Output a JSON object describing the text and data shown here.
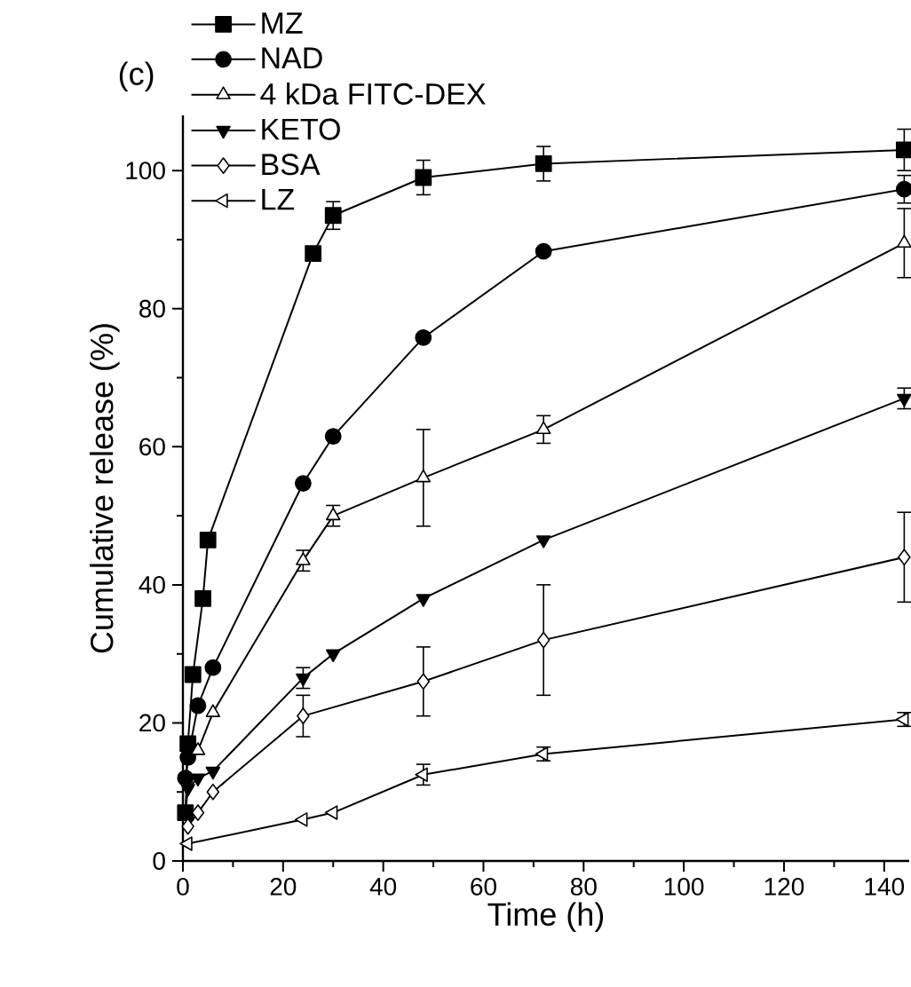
{
  "chart_data": {
    "type": "line",
    "xlabel": "Time (h)",
    "ylabel": "Cumulative release (%)",
    "annotations": [
      "(c)"
    ],
    "xlim": [
      0,
      145
    ],
    "ylim": [
      0,
      108
    ],
    "xticks": [
      0,
      20,
      40,
      60,
      80,
      100,
      120,
      140
    ],
    "yticks": [
      0,
      20,
      40,
      60,
      80,
      100
    ],
    "grid": false,
    "legend": "top left",
    "line_style": "solid",
    "series": [
      {
        "name": "MZ",
        "color": "#000000",
        "marker": "square",
        "x": [
          0.5,
          1,
          2,
          4,
          5,
          26,
          30,
          48,
          72,
          144
        ],
        "values": [
          7,
          17,
          27,
          38,
          46.5,
          88,
          93.5,
          99,
          101,
          103
        ],
        "errors": [
          null,
          null,
          null,
          null,
          null,
          null,
          2,
          2.5,
          2.5,
          3
        ]
      },
      {
        "name": "NAD",
        "color": "#000000",
        "marker": "circle",
        "x": [
          0.5,
          1,
          3,
          6,
          24,
          30,
          48,
          72,
          144
        ],
        "values": [
          12,
          15,
          22.5,
          28,
          54.7,
          61.5,
          75.8,
          88.3,
          97.3
        ],
        "errors": [
          null,
          null,
          null,
          null,
          null,
          null,
          null,
          null,
          2
        ]
      },
      {
        "name": "4 kDa FITC-DEX",
        "color": "#000000",
        "marker": "triangle",
        "x": [
          3,
          6,
          24,
          30,
          48,
          72,
          144
        ],
        "values": [
          16,
          21.5,
          43.5,
          50,
          55.5,
          62.5,
          89.5
        ],
        "errors": [
          null,
          null,
          1.5,
          1.5,
          7,
          2,
          5
        ]
      },
      {
        "name": "KETO",
        "color": "#000000",
        "marker": "triangle-down",
        "x": [
          0.5,
          1,
          3,
          6,
          24,
          30,
          48,
          72,
          144
        ],
        "values": [
          7,
          10.5,
          12,
          13,
          26.5,
          30,
          38,
          46.5,
          67
        ],
        "errors": [
          null,
          null,
          null,
          null,
          1.5,
          null,
          null,
          null,
          1.5
        ]
      },
      {
        "name": "BSA",
        "color": "#000000",
        "marker": "diamond",
        "x": [
          1,
          3,
          6,
          24,
          48,
          72,
          144
        ],
        "values": [
          5,
          7,
          10,
          21,
          26,
          32,
          44
        ],
        "errors": [
          null,
          null,
          null,
          3,
          5,
          8,
          6.5
        ]
      },
      {
        "name": "LZ",
        "color": "#000000",
        "marker": "triangle-left",
        "x": [
          1,
          24,
          30,
          48,
          72,
          144
        ],
        "values": [
          2.5,
          6,
          7,
          12.5,
          15.5,
          20.5
        ],
        "errors": [
          null,
          null,
          null,
          1.5,
          1,
          1
        ]
      }
    ]
  }
}
